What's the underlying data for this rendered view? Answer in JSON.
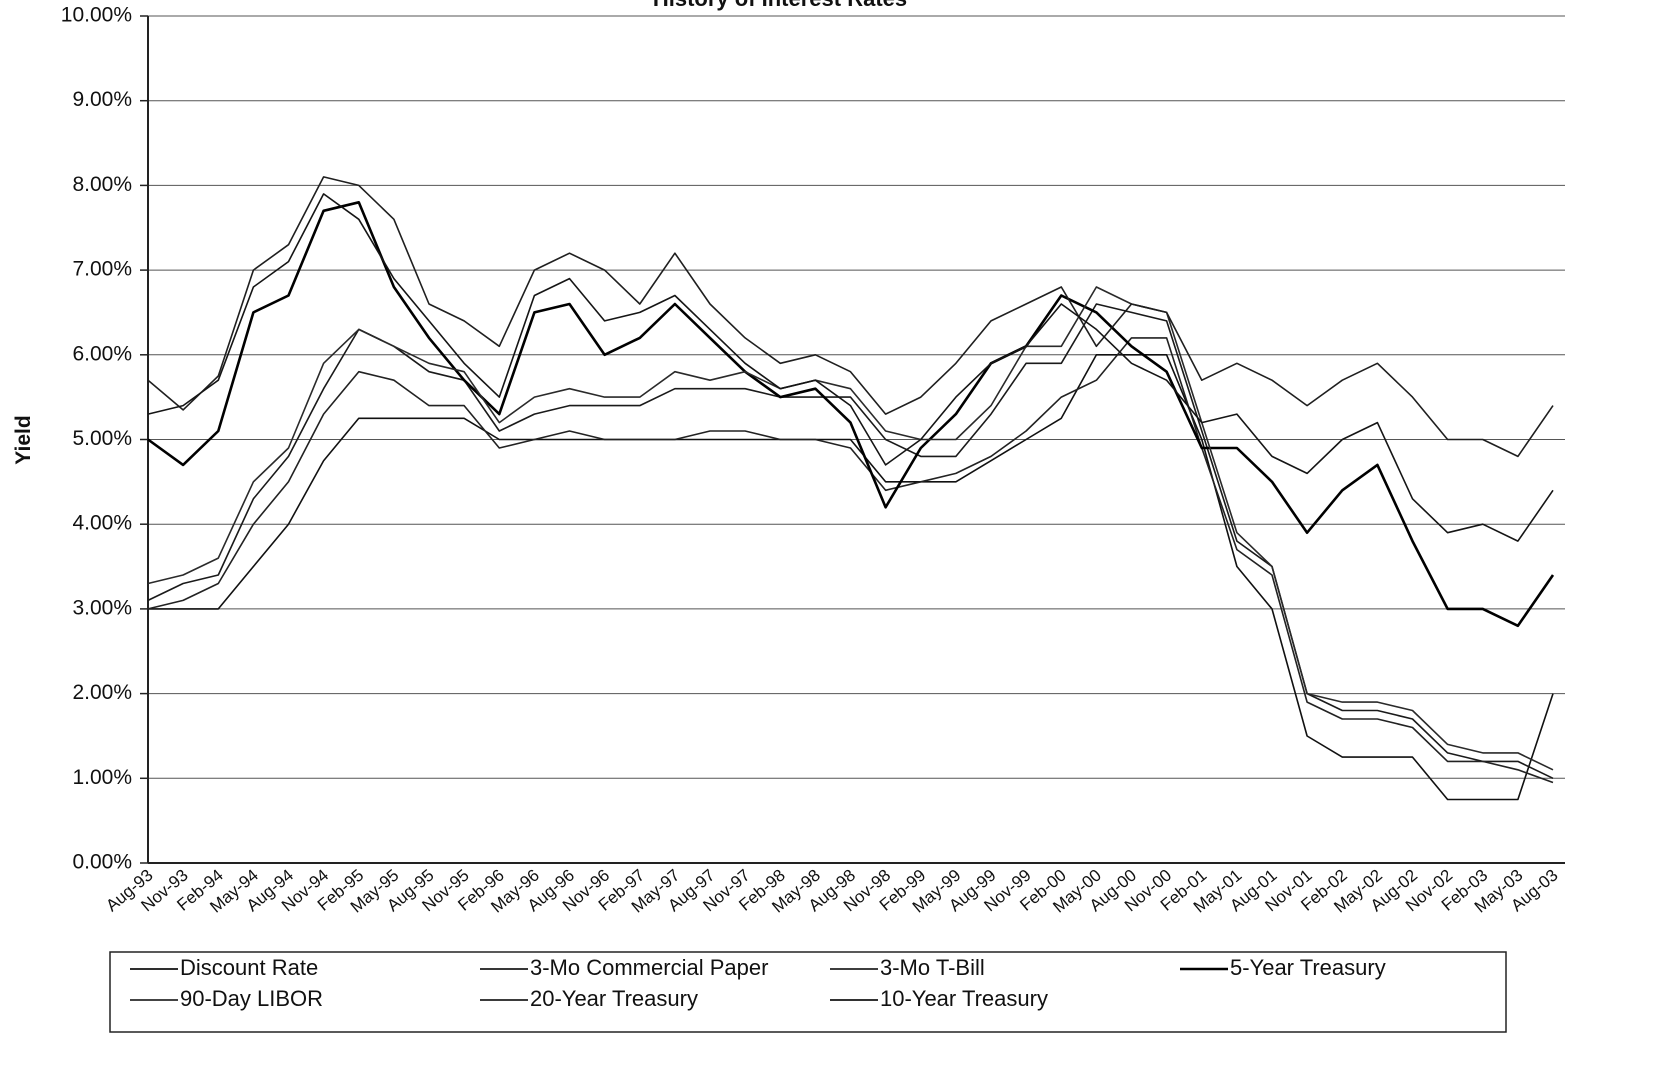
{
  "chart_data": {
    "type": "line",
    "title": "History of Interest Rates",
    "y_label": "Yield",
    "categories": [
      "Aug-93",
      "Nov-93",
      "Feb-94",
      "May-94",
      "Aug-94",
      "Nov-94",
      "Feb-95",
      "May-95",
      "Aug-95",
      "Nov-95",
      "Feb-96",
      "May-96",
      "Aug-96",
      "Nov-96",
      "Feb-97",
      "May-97",
      "Aug-97",
      "Nov-97",
      "Feb-98",
      "May-98",
      "Aug-98",
      "Nov-98",
      "Feb-99",
      "May-99",
      "Aug-99",
      "Nov-99",
      "Feb-00",
      "May-00",
      "Aug-00",
      "Nov-00",
      "Feb-01",
      "May-01",
      "Aug-01",
      "Nov-01",
      "Feb-02",
      "May-02",
      "Aug-02",
      "Nov-02",
      "Feb-03",
      "May-03",
      "Aug-03"
    ],
    "series": [
      {
        "name": "Discount Rate",
        "color": "#111111",
        "values": [
          3.0,
          3.0,
          3.0,
          3.5,
          4.0,
          4.75,
          5.25,
          5.25,
          5.25,
          5.25,
          5.0,
          5.0,
          5.0,
          5.0,
          5.0,
          5.0,
          5.0,
          5.0,
          5.0,
          5.0,
          5.0,
          4.5,
          4.5,
          4.5,
          4.75,
          5.0,
          5.25,
          6.0,
          6.0,
          6.0,
          5.0,
          3.5,
          3.0,
          1.5,
          1.25,
          1.25,
          1.25,
          0.75,
          0.75,
          0.75,
          2.0
        ]
      },
      {
        "name": "3-Mo Commercial Paper",
        "color": "#1a1a1a",
        "values": [
          3.1,
          3.3,
          3.4,
          4.3,
          4.8,
          5.6,
          6.3,
          6.1,
          5.8,
          5.7,
          5.1,
          5.3,
          5.4,
          5.4,
          5.4,
          5.6,
          5.6,
          5.6,
          5.5,
          5.5,
          5.5,
          5.0,
          4.8,
          4.8,
          5.3,
          5.9,
          5.9,
          6.6,
          6.5,
          6.4,
          5.1,
          3.8,
          3.5,
          2.0,
          1.8,
          1.8,
          1.7,
          1.3,
          1.2,
          1.2,
          1.0
        ]
      },
      {
        "name": "3-Mo T-Bill",
        "color": "#222222",
        "values": [
          3.0,
          3.1,
          3.3,
          4.0,
          4.5,
          5.3,
          5.8,
          5.7,
          5.4,
          5.4,
          4.9,
          5.0,
          5.1,
          5.0,
          5.0,
          5.0,
          5.1,
          5.1,
          5.0,
          5.0,
          4.9,
          4.4,
          4.5,
          4.6,
          4.8,
          5.1,
          5.5,
          5.7,
          6.2,
          6.2,
          4.9,
          3.7,
          3.4,
          1.9,
          1.7,
          1.7,
          1.6,
          1.2,
          1.2,
          1.1,
          0.95
        ]
      },
      {
        "name": "5-Year Treasury",
        "color": "#000000",
        "values": [
          5.0,
          4.7,
          5.1,
          6.5,
          6.7,
          7.7,
          7.8,
          6.8,
          6.2,
          5.7,
          5.3,
          6.5,
          6.6,
          6.0,
          6.2,
          6.6,
          6.2,
          5.8,
          5.5,
          5.6,
          5.2,
          4.2,
          4.9,
          5.3,
          5.9,
          6.1,
          6.7,
          6.5,
          6.1,
          5.8,
          4.9,
          4.9,
          4.5,
          3.9,
          4.4,
          4.7,
          3.8,
          3.0,
          3.0,
          2.8,
          3.4
        ]
      },
      {
        "name": "90-Day LIBOR",
        "color": "#2a2a2a",
        "values": [
          3.3,
          3.4,
          3.6,
          4.5,
          4.9,
          5.9,
          6.3,
          6.1,
          5.9,
          5.8,
          5.2,
          5.5,
          5.6,
          5.5,
          5.5,
          5.8,
          5.7,
          5.8,
          5.6,
          5.7,
          5.6,
          5.1,
          5.0,
          5.0,
          5.4,
          6.1,
          6.1,
          6.8,
          6.6,
          6.5,
          5.2,
          3.9,
          3.5,
          2.0,
          1.9,
          1.9,
          1.8,
          1.4,
          1.3,
          1.3,
          1.1
        ]
      },
      {
        "name": "20-Year Treasury",
        "color": "#1f1f1f",
        "values": [
          5.7,
          5.35,
          5.75,
          7.0,
          7.3,
          8.1,
          8.0,
          7.6,
          6.6,
          6.4,
          6.1,
          7.0,
          7.2,
          7.0,
          6.6,
          7.2,
          6.6,
          6.2,
          5.9,
          6.0,
          5.8,
          5.3,
          5.5,
          5.9,
          6.4,
          6.6,
          6.8,
          6.1,
          6.6,
          6.5,
          5.7,
          5.9,
          5.7,
          5.4,
          5.7,
          5.9,
          5.5,
          5.0,
          5.0,
          4.8,
          5.4
        ]
      },
      {
        "name": "10-Year Treasury",
        "color": "#151515",
        "values": [
          5.3,
          5.4,
          5.7,
          6.8,
          7.1,
          7.9,
          7.6,
          6.9,
          6.4,
          5.9,
          5.5,
          6.7,
          6.9,
          6.4,
          6.5,
          6.7,
          6.3,
          5.9,
          5.6,
          5.7,
          5.4,
          4.7,
          5.0,
          5.5,
          5.9,
          6.1,
          6.6,
          6.3,
          5.9,
          5.7,
          5.2,
          5.3,
          4.8,
          4.6,
          5.0,
          5.2,
          4.3,
          3.9,
          4.0,
          3.8,
          4.4
        ]
      }
    ],
    "ylim": [
      0,
      10
    ],
    "yticks": [
      {
        "value": 0,
        "label": "0.00%"
      },
      {
        "value": 1,
        "label": "1.00%"
      },
      {
        "value": 2,
        "label": "2.00%"
      },
      {
        "value": 3,
        "label": "3.00%"
      },
      {
        "value": 4,
        "label": "4.00%"
      },
      {
        "value": 5,
        "label": "5.00%"
      },
      {
        "value": 6,
        "label": "6.00%"
      },
      {
        "value": 7,
        "label": "7.00%"
      },
      {
        "value": 8,
        "label": "8.00%"
      },
      {
        "value": 9,
        "label": "9.00%"
      },
      {
        "value": 10,
        "label": "10.00%"
      }
    ],
    "grid": true,
    "legend": "bottom"
  }
}
